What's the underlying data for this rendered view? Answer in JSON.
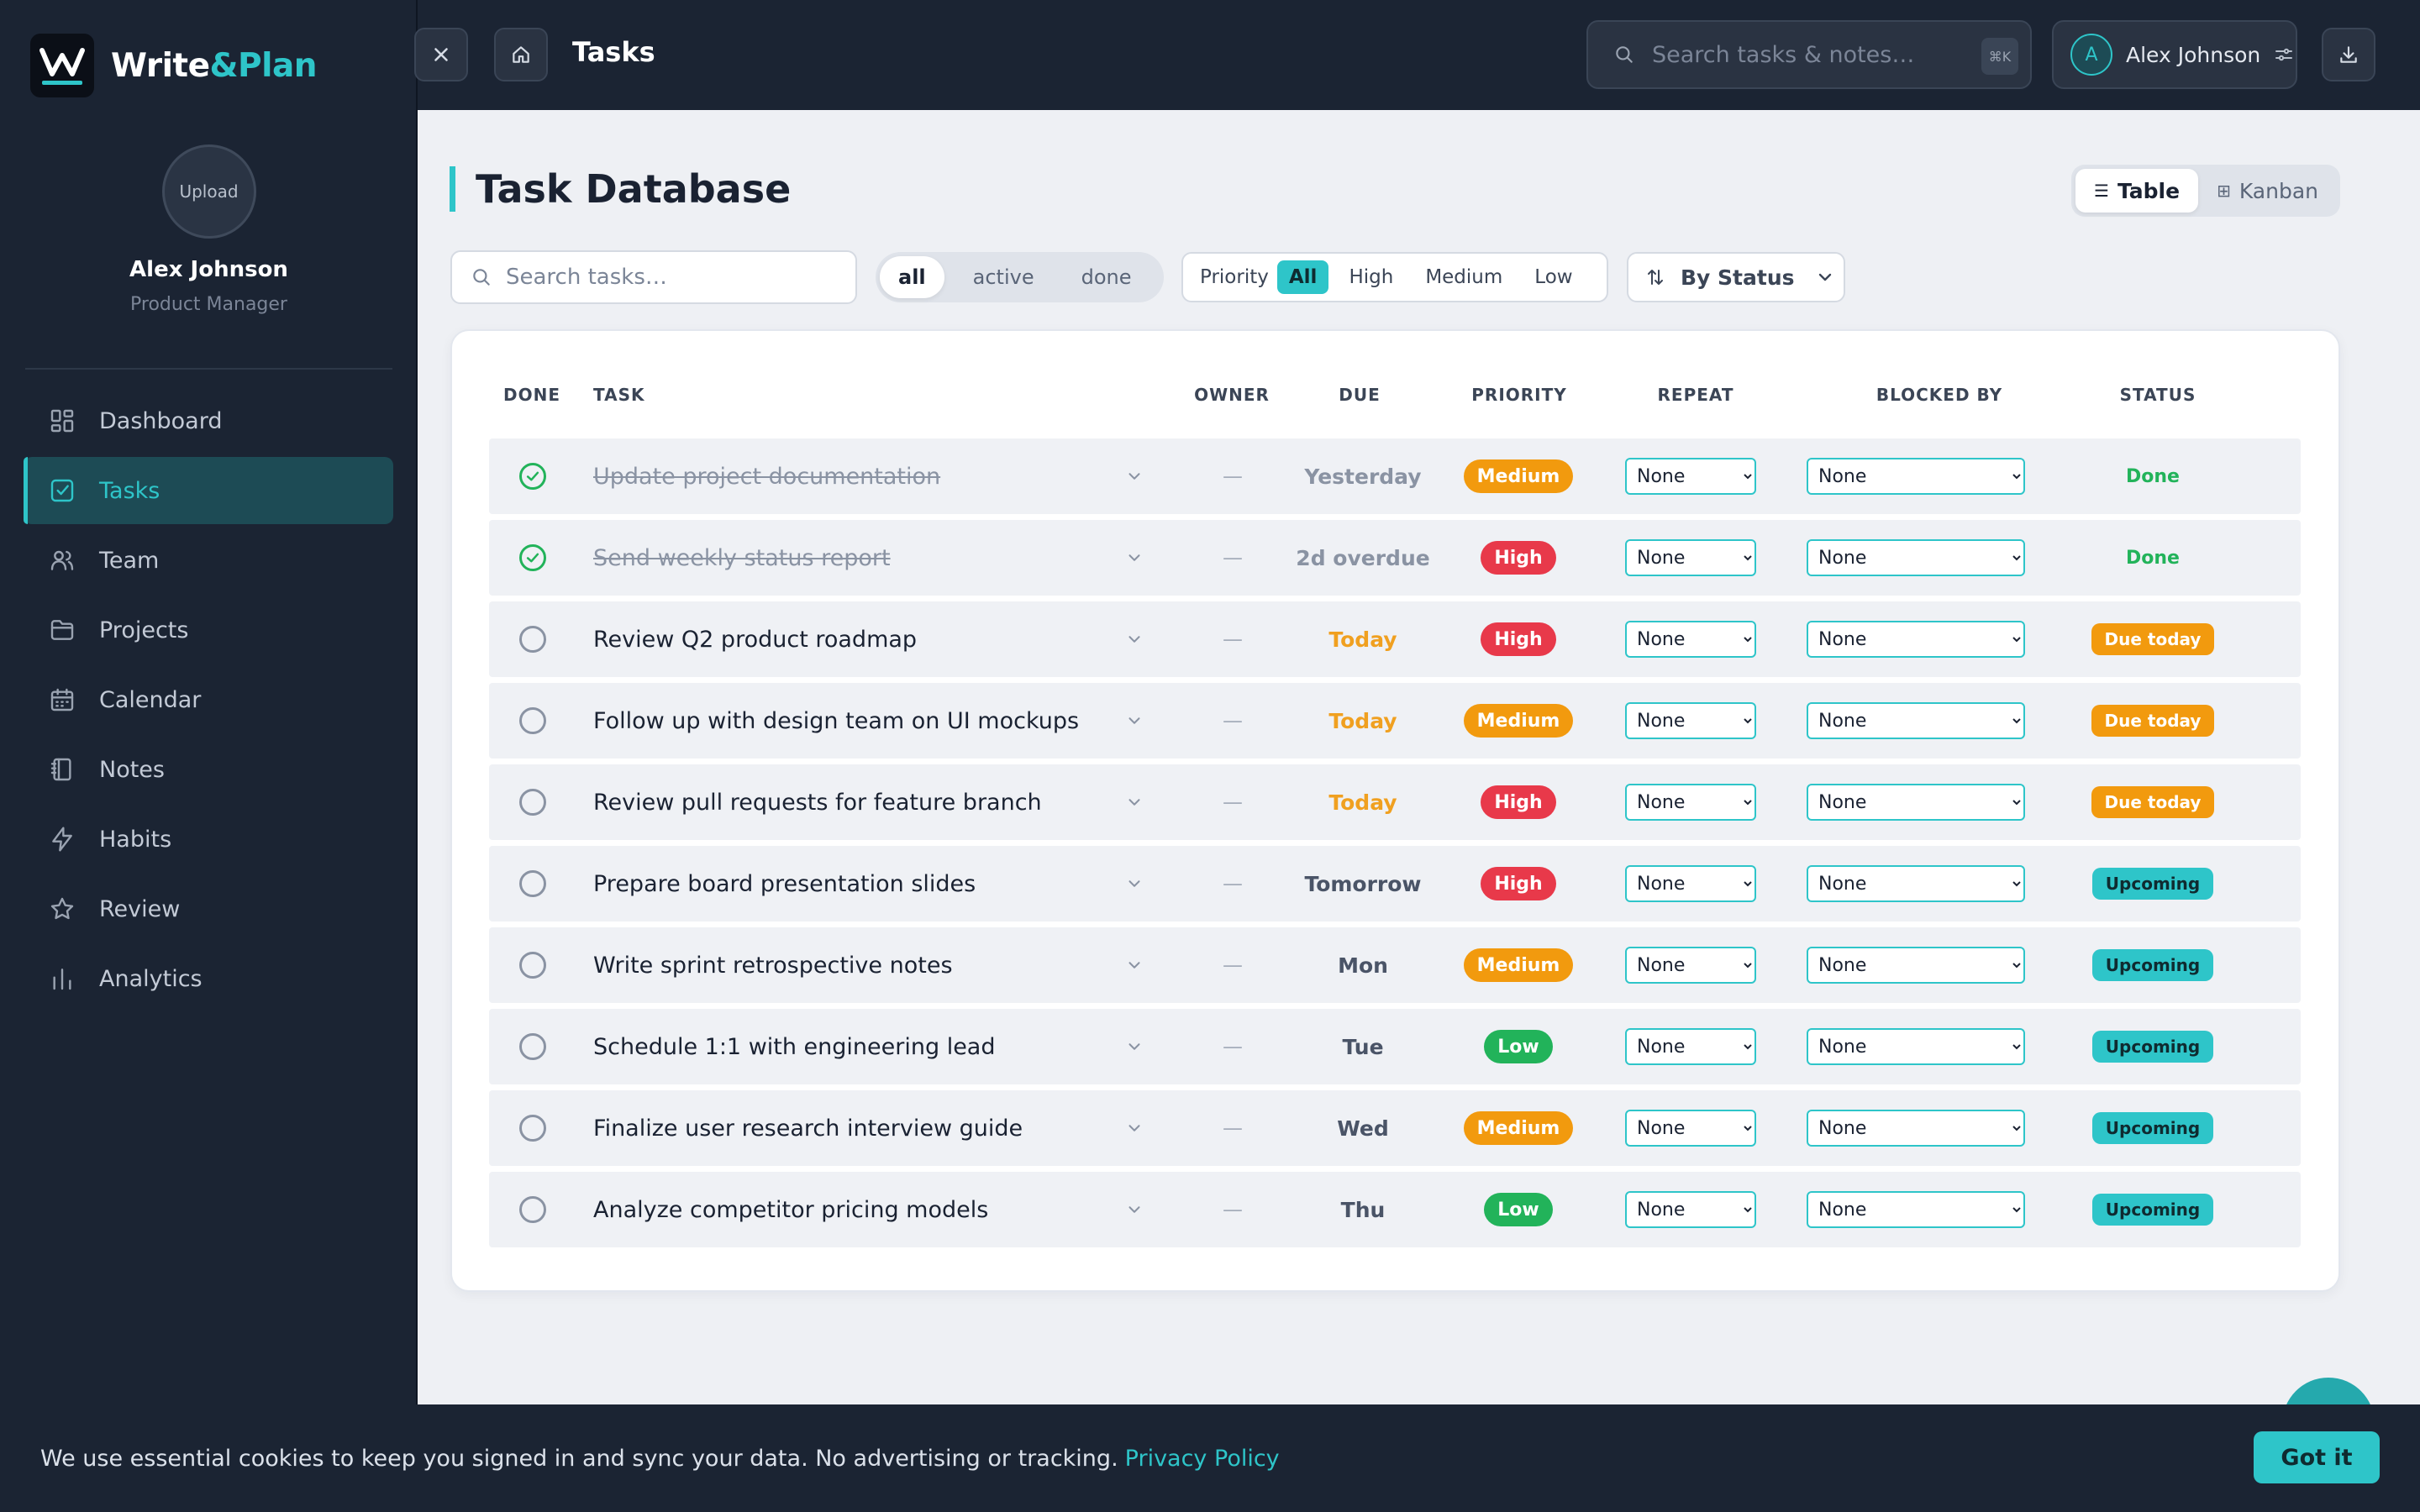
{
  "brand": {
    "part1": "Write",
    "part2": "&Plan"
  },
  "profile": {
    "upload_label": "Upload",
    "name": "Alex Johnson",
    "role": "Product Manager"
  },
  "nav": [
    {
      "label": "Dashboard",
      "icon": "dashboard-icon",
      "active": false
    },
    {
      "label": "Tasks",
      "icon": "tasks-icon",
      "active": true
    },
    {
      "label": "Team",
      "icon": "team-icon",
      "active": false
    },
    {
      "label": "Projects",
      "icon": "folder-icon",
      "active": false
    },
    {
      "label": "Calendar",
      "icon": "calendar-icon",
      "active": false
    },
    {
      "label": "Notes",
      "icon": "notebook-icon",
      "active": false
    },
    {
      "label": "Habits",
      "icon": "lightning-icon",
      "active": false
    },
    {
      "label": "Review",
      "icon": "star-icon",
      "active": false
    },
    {
      "label": "Analytics",
      "icon": "bar-chart-icon",
      "active": false
    }
  ],
  "topbar": {
    "title": "Tasks",
    "search_placeholder": "Search tasks & notes…",
    "shortcut": "⌘K",
    "user_initial": "A",
    "user_name": "Alex Johnson"
  },
  "page": {
    "heading": "Task Database",
    "view_table": "Table",
    "view_kanban": "Kanban",
    "search_placeholder": "Search tasks…",
    "status_filters": [
      "all",
      "active",
      "done"
    ],
    "status_filter_active": "all",
    "priority_label": "Priority",
    "priority_filters": [
      "All",
      "High",
      "Medium",
      "Low"
    ],
    "priority_filter_active": "All",
    "sort_label": "By Status"
  },
  "table": {
    "headers": {
      "done": "DONE",
      "task": "TASK",
      "owner": "OWNER",
      "due": "DUE",
      "priority": "PRIORITY",
      "repeat": "REPEAT",
      "blocked_by": "BLOCKED BY",
      "status": "STATUS"
    },
    "rows": [
      {
        "done": true,
        "task": "Update project documentation",
        "owner": "—",
        "due": "Yesterday",
        "due_kind": "past",
        "priority": "Medium",
        "repeat": "None",
        "blocked_by": "None",
        "status": "Done"
      },
      {
        "done": true,
        "task": "Send weekly status report",
        "owner": "—",
        "due": "2d overdue",
        "due_kind": "past",
        "priority": "High",
        "repeat": "None",
        "blocked_by": "None",
        "status": "Done"
      },
      {
        "done": false,
        "task": "Review Q2 product roadmap",
        "owner": "—",
        "due": "Today",
        "due_kind": "today",
        "priority": "High",
        "repeat": "None",
        "blocked_by": "None",
        "status": "Due today"
      },
      {
        "done": false,
        "task": "Follow up with design team on UI mockups",
        "owner": "—",
        "due": "Today",
        "due_kind": "today",
        "priority": "Medium",
        "repeat": "None",
        "blocked_by": "None",
        "status": "Due today"
      },
      {
        "done": false,
        "task": "Review pull requests for feature branch",
        "owner": "—",
        "due": "Today",
        "due_kind": "today",
        "priority": "High",
        "repeat": "None",
        "blocked_by": "None",
        "status": "Due today"
      },
      {
        "done": false,
        "task": "Prepare board presentation slides",
        "owner": "—",
        "due": "Tomorrow",
        "due_kind": "future",
        "priority": "High",
        "repeat": "None",
        "blocked_by": "None",
        "status": "Upcoming"
      },
      {
        "done": false,
        "task": "Write sprint retrospective notes",
        "owner": "—",
        "due": "Mon",
        "due_kind": "future",
        "priority": "Medium",
        "repeat": "None",
        "blocked_by": "None",
        "status": "Upcoming"
      },
      {
        "done": false,
        "task": "Schedule 1:1 with engineering lead",
        "owner": "—",
        "due": "Tue",
        "due_kind": "future",
        "priority": "Low",
        "repeat": "None",
        "blocked_by": "None",
        "status": "Upcoming"
      },
      {
        "done": false,
        "task": "Finalize user research interview guide",
        "owner": "—",
        "due": "Wed",
        "due_kind": "future",
        "priority": "Medium",
        "repeat": "None",
        "blocked_by": "None",
        "status": "Upcoming"
      },
      {
        "done": false,
        "task": "Analyze competitor pricing models",
        "owner": "—",
        "due": "Thu",
        "due_kind": "future",
        "priority": "Low",
        "repeat": "None",
        "blocked_by": "None",
        "status": "Upcoming"
      }
    ]
  },
  "colors": {
    "accent": "#2ec5c9",
    "priority": {
      "High": "#e8394a",
      "Medium": "#f29a0e",
      "Low": "#22b35a"
    },
    "due": {
      "past": "#8a93a3",
      "today": "#f0a020",
      "future": "#4a5467"
    },
    "status": {
      "Done": {
        "bg": "transparent",
        "fg": "#22b35a"
      },
      "Due today": {
        "bg": "#f29a0e",
        "fg": "#ffffff"
      },
      "Upcoming": {
        "bg": "#2ec5c9",
        "fg": "#0f2b30"
      }
    }
  },
  "cookie": {
    "text": "We use essential cookies to keep you signed in and sync your data. No advertising or tracking.",
    "link": "Privacy Policy",
    "button": "Got it"
  }
}
